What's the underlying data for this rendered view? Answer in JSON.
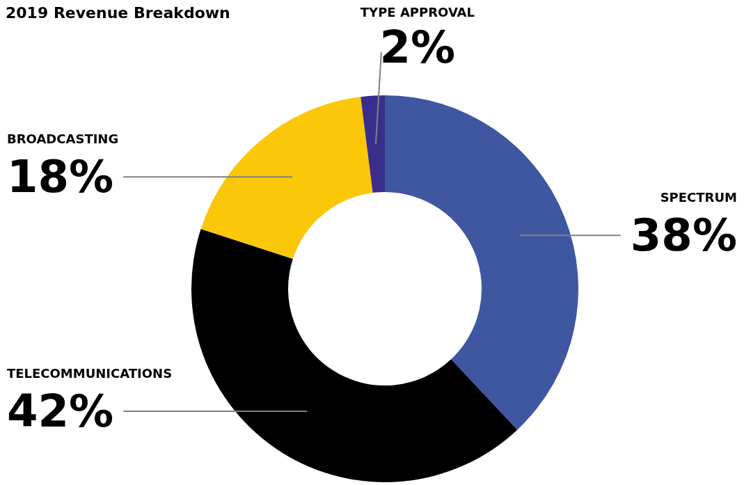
{
  "chart_data": {
    "type": "donut",
    "title": "2019 Revenue Breakdown",
    "categories": [
      "SPECTRUM",
      "TELECOMMUNICATIONS",
      "BROADCASTING",
      "TYPE APPROVAL"
    ],
    "values": [
      38,
      42,
      18,
      2
    ],
    "colors": [
      "#3f56a0",
      "#000000",
      "#fac808",
      "#3a2e8c"
    ],
    "value_labels": [
      "38%",
      "42%",
      "18%",
      "2%"
    ]
  }
}
